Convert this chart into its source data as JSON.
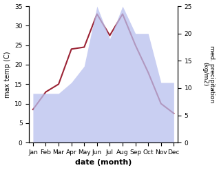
{
  "months": [
    "Jan",
    "Feb",
    "Mar",
    "Apr",
    "May",
    "Jun",
    "Jul",
    "Aug",
    "Sep",
    "Oct",
    "Nov",
    "Dec"
  ],
  "temperature": [
    8.5,
    13.0,
    15.0,
    24.0,
    24.5,
    33.0,
    27.5,
    33.0,
    25.0,
    18.0,
    10.0,
    7.5
  ],
  "precipitation": [
    9,
    9,
    9,
    11,
    14,
    25,
    19,
    25,
    20,
    20,
    11,
    11
  ],
  "temp_ylim": [
    0,
    35
  ],
  "precip_ylim": [
    0,
    25
  ],
  "temp_yticks": [
    0,
    5,
    10,
    15,
    20,
    25,
    30,
    35
  ],
  "precip_yticks": [
    0,
    5,
    10,
    15,
    20,
    25
  ],
  "xlabel": "date (month)",
  "ylabel_left": "max temp (C)",
  "ylabel_right": "med. precipitation\n(kg/m2)",
  "line_color": "#9b2335",
  "fill_color": "#b8bfee",
  "fill_alpha": 0.75,
  "bg_color": "#ffffff"
}
